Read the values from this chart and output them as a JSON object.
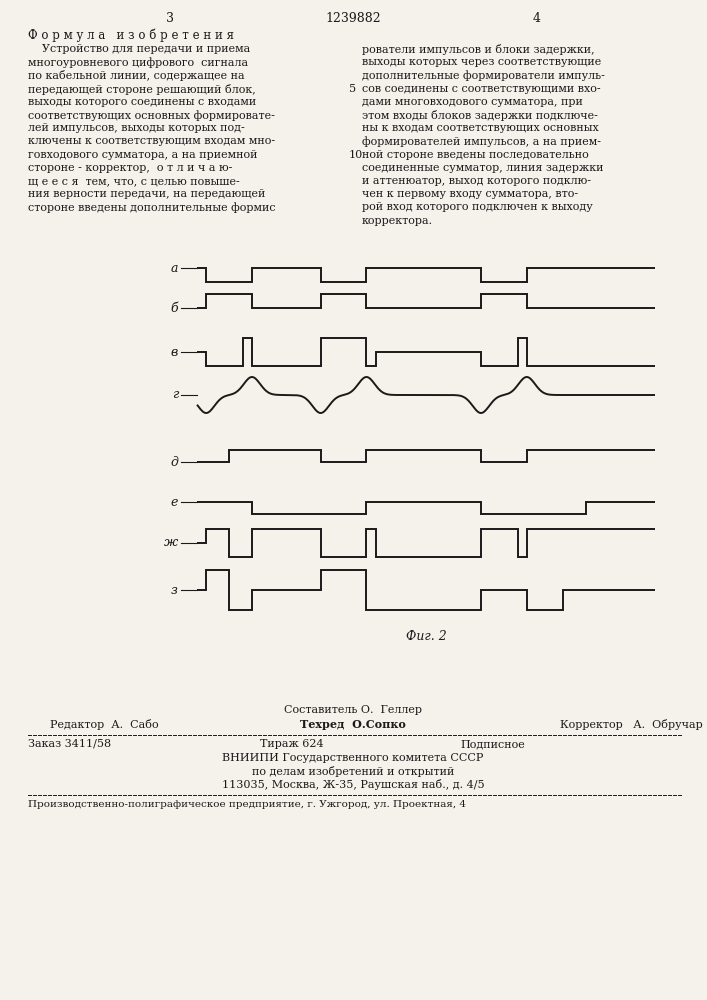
{
  "page_number_left": "3",
  "page_number_center": "1239882",
  "page_number_right": "4",
  "formula_title": "Ф о р м у л а   и з о б р е т е н и я",
  "left_text": [
    "    Устройство для передачи и приема",
    "многоуровневого цифрового  сигнала",
    "по кабельной линии, содержащее на",
    "передающей стороне решающий блок,",
    "выходы которого соединены с входами",
    "соответствующих основных формировате-",
    "лей импульсов, выходы которых под-",
    "ключены к соответствующим входам мно-",
    "говходового сумматора, а на приемной",
    "стороне - корректор,  о т л и ч а ю-",
    "щ е е с я  тем, что, с целью повыше-",
    "ния верности передачи, на передающей",
    "стороне введены дополнительные формис"
  ],
  "right_text": [
    "рователи импульсов и блоки задержки,",
    "выходы которых через соответствующие",
    "дополнительные формирователи импуль-",
    "сов соединены с соответствующими вхо-",
    "дами многовходового сумматора, при",
    "этом входы блоков задержки подключе-",
    "ны к входам соответствующих основных",
    "формирователей импульсов, а на прием-",
    "ной стороне введены последовательно",
    "соединенные сумматор, линия задержки",
    "и аттенюатор, выход которого подклю-",
    "чен к первому входу сумматора, вто-",
    "рой вход которого подключен к выходу",
    "корректора."
  ],
  "bg_color": "#f5f2ec",
  "text_color": "#1a1a1a",
  "line_color": "#1a1a1a",
  "footer_line1": "Составитель О.  Геллер",
  "footer_line2_left": "Редактор  А.  Сабо",
  "footer_line2_center": "Техред  О.Сопко",
  "footer_line2_right": "Корректор   А.  Обручар",
  "footer_info1_left": "Заказ 3411/58",
  "footer_info1_center": "Тираж 624",
  "footer_info1_right": "Подписное",
  "footer_info2": "ВНИИПИ Государственного комитета СССР",
  "footer_info3": "по делам изобретений и открытий",
  "footer_info4": "113035, Москва, Ж-35, Раушская наб., д. 4/5",
  "footer_last": "Производственно-полиграфическое предприятие, г. Ужгород, ул. Проектная, 4"
}
